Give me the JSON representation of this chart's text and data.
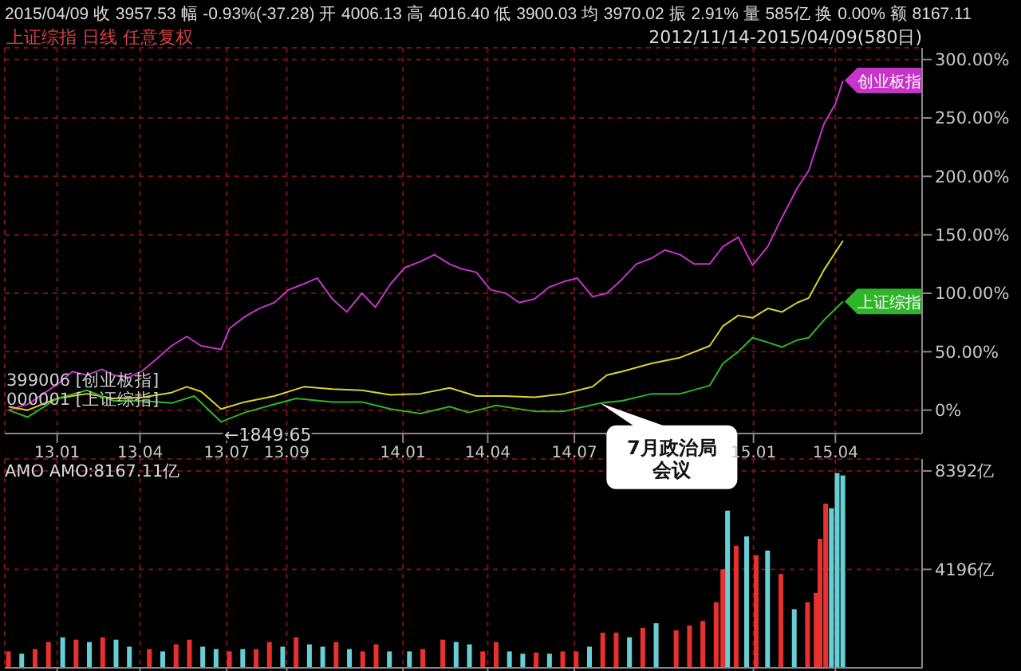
{
  "chart_data": [
    {
      "type": "line",
      "title": "2015/04/09 收 3957.53 幅 -0.93%(-37.28) 开 4006.13 高 4016.40 低 3900.03 均 3970.02 振 2.91% 量 585亿 换 0.00% 额 8167.11",
      "subtitle": "上证综指 日线 任意复权",
      "annotations": [
        "2012/11/14-2015/04/09(580日)",
        "399006 [创业板指]",
        "000001 [上证综指]",
        {
          "text": "←1849.65",
          "x": "2013-06-25",
          "y": -10
        },
        {
          "text": "7月政治局会议",
          "x": "2014-07-28",
          "y": 6
        }
      ],
      "xlim": [
        "2012-11-10",
        "2015-07-01"
      ],
      "xticks": [
        {
          "value": "2013-01-04",
          "label": "13.01"
        },
        {
          "value": "2013-04-01",
          "label": "13.04"
        },
        {
          "value": "2013-07-01",
          "label": "13.07"
        },
        {
          "value": "2013-09-02",
          "label": "13.09"
        },
        {
          "value": "2014-01-02",
          "label": "14.01"
        },
        {
          "value": "2014-04-01",
          "label": "14.04"
        },
        {
          "value": "2014-07-01",
          "label": "14.07"
        },
        {
          "value": "2015-01-05",
          "label": "15.01"
        },
        {
          "value": "2015-04-01",
          "label": "15.04"
        }
      ],
      "ylim": [
        -20,
        310
      ],
      "yticks": [
        {
          "value": 0,
          "label": "0%"
        },
        {
          "value": 50,
          "label": "50.00%"
        },
        {
          "value": 100,
          "label": "100.00%"
        },
        {
          "value": 150,
          "label": "150.00%"
        },
        {
          "value": 200,
          "label": "200.00%"
        },
        {
          "value": 250,
          "label": "250.00%"
        },
        {
          "value": 300,
          "label": "300.00%"
        }
      ],
      "grid": true,
      "legend": false,
      "marker": "none",
      "line_style": "solid",
      "series": [
        {
          "name": "创业板指",
          "color": "#c535c8",
          "x": [
            "2012-11-14",
            "2012-12-04",
            "2013-01-04",
            "2013-01-20",
            "2013-02-04",
            "2013-02-20",
            "2013-03-04",
            "2013-03-20",
            "2013-04-04",
            "2013-04-20",
            "2013-05-04",
            "2013-05-20",
            "2013-06-04",
            "2013-06-25",
            "2013-07-04",
            "2013-07-20",
            "2013-08-04",
            "2013-08-20",
            "2013-09-04",
            "2013-09-20",
            "2013-10-04",
            "2013-10-20",
            "2013-11-04",
            "2013-11-20",
            "2013-12-04",
            "2013-12-20",
            "2014-01-04",
            "2014-01-20",
            "2014-02-04",
            "2014-02-20",
            "2014-03-04",
            "2014-03-20",
            "2014-04-04",
            "2014-04-20",
            "2014-05-04",
            "2014-05-20",
            "2014-06-04",
            "2014-06-20",
            "2014-07-04",
            "2014-07-20",
            "2014-08-04",
            "2014-08-20",
            "2014-09-04",
            "2014-09-20",
            "2014-10-04",
            "2014-10-20",
            "2014-11-04",
            "2014-11-20",
            "2014-12-04",
            "2014-12-20",
            "2015-01-04",
            "2015-01-20",
            "2015-02-04",
            "2015-02-20",
            "2015-03-04",
            "2015-03-20",
            "2015-04-01",
            "2015-04-09"
          ],
          "values": [
            0,
            5,
            22,
            33,
            30,
            35,
            30,
            28,
            34,
            45,
            55,
            63,
            55,
            52,
            70,
            80,
            87,
            92,
            103,
            108,
            113,
            95,
            84,
            100,
            88,
            108,
            122,
            127,
            133,
            125,
            121,
            118,
            103,
            100,
            92,
            95,
            105,
            110,
            113,
            97,
            100,
            112,
            125,
            130,
            137,
            133,
            125,
            125,
            140,
            148,
            124,
            140,
            165,
            190,
            205,
            245,
            262,
            282
          ]
        },
        {
          "color": "#d7d232",
          "x": [
            "2012-11-14",
            "2012-12-04",
            "2013-01-04",
            "2013-02-04",
            "2013-03-04",
            "2013-04-04",
            "2013-05-04",
            "2013-05-20",
            "2013-06-04",
            "2013-06-25",
            "2013-07-20",
            "2013-08-20",
            "2013-09-20",
            "2013-10-20",
            "2013-11-20",
            "2013-12-20",
            "2014-01-20",
            "2014-02-20",
            "2014-03-20",
            "2014-04-20",
            "2014-05-20",
            "2014-06-20",
            "2014-07-20",
            "2014-08-04",
            "2014-08-20",
            "2014-09-20",
            "2014-10-20",
            "2014-11-20",
            "2014-12-04",
            "2014-12-20",
            "2015-01-04",
            "2015-01-20",
            "2015-02-04",
            "2015-02-20",
            "2015-03-04",
            "2015-03-20",
            "2015-04-09"
          ],
          "values": [
            3,
            0,
            10,
            14,
            10,
            11,
            15,
            20,
            16,
            1,
            7,
            12,
            20,
            18,
            17,
            13,
            14,
            19,
            12,
            12,
            11,
            14,
            20,
            30,
            33,
            40,
            45,
            55,
            72,
            81,
            79,
            87,
            84,
            92,
            96,
            120,
            145
          ]
        },
        {
          "name": "上证综指",
          "color": "#2fb52a",
          "x": [
            "2012-11-14",
            "2012-12-04",
            "2013-01-04",
            "2013-02-04",
            "2013-03-04",
            "2013-04-04",
            "2013-05-04",
            "2013-05-28",
            "2013-06-25",
            "2013-07-20",
            "2013-08-20",
            "2013-09-12",
            "2013-10-20",
            "2013-11-20",
            "2013-12-20",
            "2014-01-20",
            "2014-02-20",
            "2014-03-12",
            "2014-04-10",
            "2014-05-20",
            "2014-06-20",
            "2014-07-28",
            "2014-08-20",
            "2014-09-20",
            "2014-10-20",
            "2014-11-20",
            "2014-12-04",
            "2014-12-20",
            "2015-01-04",
            "2015-01-20",
            "2015-02-04",
            "2015-02-20",
            "2015-03-04",
            "2015-03-20",
            "2015-04-09"
          ],
          "values": [
            0,
            -6,
            10,
            17,
            8,
            8,
            6,
            12,
            -10,
            -2,
            5,
            10,
            7,
            7,
            1,
            -3,
            3,
            -2,
            4,
            -1,
            -1,
            6,
            8,
            14,
            14,
            21,
            40,
            50,
            62,
            58,
            54,
            60,
            62,
            77,
            93
          ]
        }
      ]
    },
    {
      "type": "bar",
      "title": "AMO AMO:8167.11亿",
      "xlim": [
        "2012-11-10",
        "2015-07-01"
      ],
      "xticks": [
        {
          "value": "2013-01-04",
          "label": null
        },
        {
          "value": "2013-04-01",
          "label": null
        },
        {
          "value": "2013-07-01",
          "label": null
        },
        {
          "value": "2013-09-02",
          "label": null
        },
        {
          "value": "2014-01-02",
          "label": null
        },
        {
          "value": "2014-04-01",
          "label": null
        },
        {
          "value": "2014-07-01",
          "label": null
        },
        {
          "value": "2015-01-05",
          "label": null
        },
        {
          "value": "2015-04-01",
          "label": null
        }
      ],
      "ylim": [
        0,
        8900
      ],
      "yticks": [
        {
          "value": 4196,
          "label": "4196亿"
        },
        {
          "value": 8392,
          "label": "8392亿"
        }
      ],
      "tick_labels": "y",
      "grid": true,
      "legend": false,
      "x": [
        "2012-11-14",
        "2012-11-28",
        "2012-12-12",
        "2012-12-26",
        "2013-01-10",
        "2013-01-24",
        "2013-02-07",
        "2013-02-21",
        "2013-03-07",
        "2013-03-21",
        "2013-04-11",
        "2013-04-25",
        "2013-05-09",
        "2013-05-23",
        "2013-06-06",
        "2013-06-20",
        "2013-07-04",
        "2013-07-18",
        "2013-08-01",
        "2013-08-15",
        "2013-08-29",
        "2013-09-12",
        "2013-09-26",
        "2013-10-10",
        "2013-10-24",
        "2013-11-07",
        "2013-11-21",
        "2013-12-05",
        "2013-12-19",
        "2014-01-09",
        "2014-01-23",
        "2014-02-13",
        "2014-02-27",
        "2014-03-13",
        "2014-03-27",
        "2014-04-10",
        "2014-04-24",
        "2014-05-08",
        "2014-05-22",
        "2014-06-05",
        "2014-06-19",
        "2014-07-03",
        "2014-07-17",
        "2014-07-31",
        "2014-08-14",
        "2014-08-28",
        "2014-09-11",
        "2014-09-25",
        "2014-10-16",
        "2014-10-30",
        "2014-11-13",
        "2014-11-27",
        "2014-12-04",
        "2014-12-09",
        "2014-12-18",
        "2014-12-29",
        "2015-01-08",
        "2015-01-20",
        "2015-02-03",
        "2015-02-17",
        "2015-03-03",
        "2015-03-12",
        "2015-03-16",
        "2015-03-22",
        "2015-03-28",
        "2015-04-03",
        "2015-04-09"
      ],
      "values": [
        700,
        600,
        800,
        1100,
        1300,
        1200,
        1100,
        1300,
        1200,
        900,
        800,
        700,
        1000,
        1200,
        900,
        800,
        700,
        800,
        800,
        1100,
        900,
        1300,
        1000,
        900,
        1100,
        800,
        700,
        1000,
        700,
        700,
        800,
        1200,
        1100,
        1000,
        700,
        1100,
        700,
        600,
        650,
        600,
        700,
        700,
        900,
        1500,
        1500,
        1300,
        1700,
        1900,
        1600,
        1800,
        2000,
        2800,
        4200,
        6700,
        5200,
        5600,
        4800,
        5000,
        4000,
        2500,
        2800,
        3200,
        5500,
        7000,
        6800,
        8300,
        8200
      ],
      "colors": [
        "#e8312f",
        "#66cfd6",
        "#e8312f",
        "#e8312f",
        "#66cfd6",
        "#e8312f",
        "#66cfd6",
        "#e8312f",
        "#66cfd6",
        "#66cfd6",
        "#e8312f",
        "#66cfd6",
        "#e8312f",
        "#e8312f",
        "#66cfd6",
        "#66cfd6",
        "#e8312f",
        "#66cfd6",
        "#e8312f",
        "#e8312f",
        "#66cfd6",
        "#e8312f",
        "#66cfd6",
        "#66cfd6",
        "#e8312f",
        "#66cfd6",
        "#e8312f",
        "#e8312f",
        "#66cfd6",
        "#66cfd6",
        "#e8312f",
        "#e8312f",
        "#66cfd6",
        "#66cfd6",
        "#e8312f",
        "#e8312f",
        "#66cfd6",
        "#66cfd6",
        "#e8312f",
        "#66cfd6",
        "#e8312f",
        "#e8312f",
        "#66cfd6",
        "#e8312f",
        "#e8312f",
        "#66cfd6",
        "#e8312f",
        "#66cfd6",
        "#e8312f",
        "#e8312f",
        "#e8312f",
        "#e8312f",
        "#e8312f",
        "#66cfd6",
        "#e8312f",
        "#66cfd6",
        "#e8312f",
        "#66cfd6",
        "#e8312f",
        "#66cfd6",
        "#e8312f",
        "#e8312f",
        "#e8312f",
        "#e8312f",
        "#66cfd6",
        "#66cfd6",
        "#66cfd6"
      ]
    }
  ]
}
